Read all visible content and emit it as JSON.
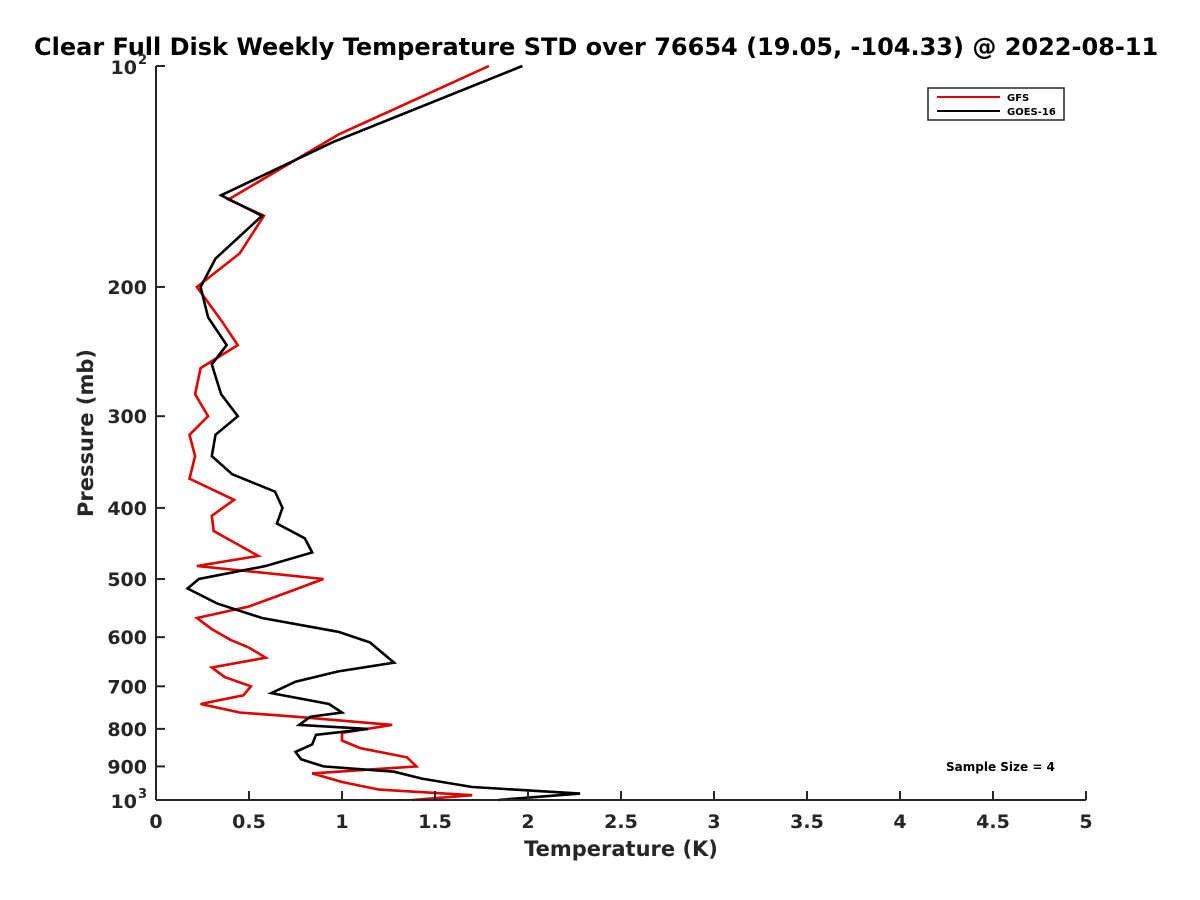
{
  "chart_data": {
    "type": "line",
    "title": "Clear Full Disk Weekly Temperature STD over 76654 (19.05, -104.33) @ 2022-08-11",
    "xlabel": "Temperature (K)",
    "ylabel": "Pressure (mb)",
    "xlim": [
      0,
      5
    ],
    "ylim": [
      100,
      1000
    ],
    "yscale": "log",
    "y_reversed": true,
    "x_ticks": [
      "0",
      "0.5",
      "1",
      "1.5",
      "2",
      "2.5",
      "3",
      "3.5",
      "4",
      "4.5",
      "5"
    ],
    "y_ticks": [
      {
        "value": 100,
        "label": "10",
        "sup": "2"
      },
      {
        "value": 200,
        "label": "200"
      },
      {
        "value": 300,
        "label": "300"
      },
      {
        "value": 400,
        "label": "400"
      },
      {
        "value": 500,
        "label": "500"
      },
      {
        "value": 600,
        "label": "600"
      },
      {
        "value": 700,
        "label": "700"
      },
      {
        "value": 800,
        "label": "800"
      },
      {
        "value": 900,
        "label": "900"
      },
      {
        "value": 1000,
        "label": "10",
        "sup": "3"
      }
    ],
    "legend": {
      "position": "top-right"
    },
    "annotation": "Sample Size = 4",
    "series": [
      {
        "name": "GFS",
        "color": "#e00000",
        "points": [
          [
            1.79,
            100
          ],
          [
            0.98,
            124
          ],
          [
            0.39,
            152
          ],
          [
            0.58,
            160
          ],
          [
            0.45,
            180
          ],
          [
            0.22,
            200
          ],
          [
            0.35,
            222
          ],
          [
            0.44,
            240
          ],
          [
            0.24,
            258
          ],
          [
            0.21,
            280
          ],
          [
            0.28,
            300
          ],
          [
            0.18,
            318
          ],
          [
            0.21,
            340
          ],
          [
            0.18,
            365
          ],
          [
            0.42,
            390
          ],
          [
            0.3,
            410
          ],
          [
            0.31,
            430
          ],
          [
            0.45,
            450
          ],
          [
            0.55,
            465
          ],
          [
            0.22,
            480
          ],
          [
            0.9,
            500
          ],
          [
            0.72,
            520
          ],
          [
            0.5,
            545
          ],
          [
            0.22,
            565
          ],
          [
            0.3,
            585
          ],
          [
            0.4,
            605
          ],
          [
            0.5,
            620
          ],
          [
            0.59,
            640
          ],
          [
            0.3,
            660
          ],
          [
            0.37,
            680
          ],
          [
            0.51,
            700
          ],
          [
            0.47,
            720
          ],
          [
            0.24,
            740
          ],
          [
            0.45,
            760
          ],
          [
            0.75,
            770
          ],
          [
            1.27,
            790
          ],
          [
            1.0,
            810
          ],
          [
            1.0,
            830
          ],
          [
            1.1,
            850
          ],
          [
            1.35,
            875
          ],
          [
            1.4,
            900
          ],
          [
            0.84,
            920
          ],
          [
            1.0,
            945
          ],
          [
            1.2,
            968
          ],
          [
            1.7,
            985
          ],
          [
            1.38,
            1000
          ]
        ]
      },
      {
        "name": "GOES-16",
        "color": "#000000",
        "points": [
          [
            1.97,
            100
          ],
          [
            0.95,
            127
          ],
          [
            0.35,
            150
          ],
          [
            0.57,
            160
          ],
          [
            0.32,
            183
          ],
          [
            0.24,
            200
          ],
          [
            0.28,
            220
          ],
          [
            0.38,
            240
          ],
          [
            0.3,
            255
          ],
          [
            0.35,
            280
          ],
          [
            0.44,
            300
          ],
          [
            0.32,
            318
          ],
          [
            0.3,
            340
          ],
          [
            0.41,
            360
          ],
          [
            0.64,
            380
          ],
          [
            0.68,
            400
          ],
          [
            0.65,
            420
          ],
          [
            0.8,
            440
          ],
          [
            0.84,
            460
          ],
          [
            0.59,
            480
          ],
          [
            0.23,
            500
          ],
          [
            0.17,
            515
          ],
          [
            0.33,
            540
          ],
          [
            0.57,
            565
          ],
          [
            0.98,
            590
          ],
          [
            1.15,
            610
          ],
          [
            1.28,
            650
          ],
          [
            0.98,
            668
          ],
          [
            0.75,
            690
          ],
          [
            0.62,
            715
          ],
          [
            0.93,
            740
          ],
          [
            1.0,
            760
          ],
          [
            0.83,
            770
          ],
          [
            0.77,
            790
          ],
          [
            1.14,
            800
          ],
          [
            0.86,
            815
          ],
          [
            0.84,
            840
          ],
          [
            0.75,
            860
          ],
          [
            0.78,
            880
          ],
          [
            0.9,
            900
          ],
          [
            1.28,
            915
          ],
          [
            1.43,
            935
          ],
          [
            1.7,
            960
          ],
          [
            2.28,
            980
          ],
          [
            1.84,
            1000
          ]
        ]
      }
    ]
  }
}
